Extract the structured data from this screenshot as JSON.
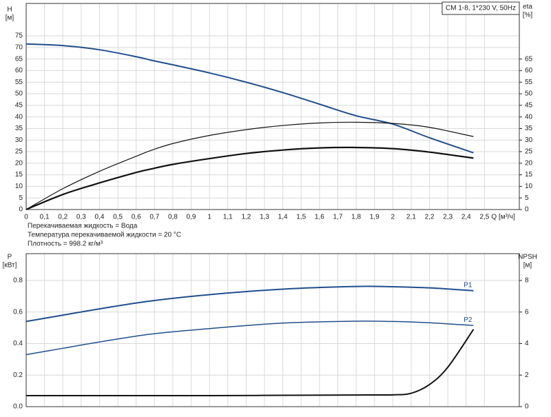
{
  "chart_data": [
    {
      "type": "line",
      "title": "CM 1-8, 1*230 V, 50Hz",
      "ylabel": "H",
      "yunit": "[м]",
      "y2label": "eta",
      "y2unit": "[%]",
      "xlabel": "Q [м³/ч]",
      "notes": [
        "Перекачиваемая жидкость = Вода",
        "Температура перекачиваемой жидкости = 20 °C",
        "Плотность = 998.2 кг/м³"
      ],
      "x": [
        0,
        0.2,
        0.4,
        0.6,
        0.68,
        0.8,
        1.0,
        1.2,
        1.4,
        1.6,
        1.8,
        2.0,
        2.2,
        2.44
      ],
      "series": [
        {
          "color": "#1f4e8c",
          "line_width": 2,
          "values": [
            71.5,
            70.8,
            69,
            66,
            64.5,
            62.5,
            59,
            55,
            50.5,
            45.5,
            40.5,
            36.9,
            31,
            24.5
          ]
        },
        {
          "color": "#111111",
          "line_width": 1.2,
          "axis": "y2",
          "values": [
            0,
            9,
            16.5,
            23,
            25.5,
            28.5,
            32,
            34.5,
            36.3,
            37.4,
            37.7,
            37.2,
            35.5,
            31.5
          ]
        },
        {
          "color": "#111111",
          "line_width": 2.2,
          "axis": "y2",
          "values": [
            0,
            6.5,
            11.5,
            16,
            17.5,
            19.5,
            22,
            24.2,
            25.7,
            26.6,
            26.8,
            26.3,
            24.8,
            22.2
          ]
        }
      ],
      "xlim": [
        0,
        2.69
      ],
      "xticks": [
        0,
        {
          "value": 0.1,
          "label": "0,1"
        },
        {
          "value": 0.2,
          "label": "0,2"
        },
        {
          "value": 0.3,
          "label": "0,3"
        },
        {
          "value": 0.4,
          "label": "0,4"
        },
        {
          "value": 0.5,
          "label": "0,5"
        },
        {
          "value": 0.6,
          "label": "0,6"
        },
        {
          "value": 0.7,
          "label": "0,7"
        },
        {
          "value": 0.8,
          "label": "0,8"
        },
        {
          "value": 0.9,
          "label": "0,9"
        },
        1,
        {
          "value": 1.1,
          "label": "1,1"
        },
        {
          "value": 1.2,
          "label": "1,2"
        },
        {
          "value": 1.3,
          "label": "1,3"
        },
        {
          "value": 1.4,
          "label": "1,4"
        },
        {
          "value": 1.5,
          "label": "1,5"
        },
        {
          "value": 1.6,
          "label": "1,6"
        },
        {
          "value": 1.7,
          "label": "1,7"
        },
        {
          "value": 1.8,
          "label": "1,8"
        },
        {
          "value": 1.9,
          "label": "1,9"
        },
        2,
        {
          "value": 2.1,
          "label": "2,1"
        },
        {
          "value": 2.2,
          "label": "2,2"
        },
        {
          "value": 2.3,
          "label": "2,3"
        },
        {
          "value": 2.4,
          "label": "2,4"
        },
        {
          "value": 2.5,
          "label": "2,5"
        }
      ],
      "ylim": [
        0,
        89
      ],
      "yticks": [
        0,
        5,
        10,
        15,
        20,
        25,
        30,
        35,
        40,
        45,
        50,
        55,
        60,
        65,
        70,
        75
      ],
      "y2lim": [
        0,
        89
      ],
      "y2ticks": [
        0,
        5,
        10,
        15,
        20,
        25,
        30,
        35,
        40,
        45,
        50,
        55,
        60,
        65
      ],
      "grid": true
    },
    {
      "type": "line",
      "ylabel": "P",
      "yunit": "[кВт]",
      "y2label": "NPSH",
      "y2unit": "[м]",
      "x": [
        0,
        0.2,
        0.4,
        0.68,
        1.0,
        1.4,
        1.8,
        2.0,
        2.1,
        2.2,
        2.3,
        2.44
      ],
      "series": [
        {
          "name": "P1",
          "color": "#1f4e8c",
          "line_width": 2,
          "values": [
            0.54,
            0.58,
            0.62,
            0.67,
            0.71,
            0.745,
            0.762,
            0.76,
            0.757,
            0.753,
            0.746,
            0.735
          ]
        },
        {
          "name": "P2",
          "color": "#1f4e8c",
          "line_width": 1.5,
          "values": [
            0.33,
            0.37,
            0.41,
            0.46,
            0.495,
            0.53,
            0.542,
            0.54,
            0.537,
            0.532,
            0.525,
            0.515
          ]
        },
        {
          "color": "#111111",
          "line_width": 2,
          "axis": "y2",
          "values": [
            0.7,
            0.7,
            0.7,
            0.7,
            0.7,
            0.72,
            0.74,
            0.75,
            0.85,
            1.4,
            2.5,
            4.9
          ]
        }
      ],
      "xlim": [
        0,
        2.69
      ],
      "xticks": [
        0,
        0.1,
        0.2,
        0.3,
        0.4,
        0.5,
        0.6,
        0.7,
        0.8,
        0.9,
        1,
        1.1,
        1.2,
        1.3,
        1.4,
        1.5,
        1.6,
        1.7,
        1.8,
        1.9,
        2,
        2.1,
        2.2,
        2.3,
        2.4,
        2.5
      ],
      "ylim": [
        0,
        0.97
      ],
      "yticks": [
        {
          "value": 0,
          "label": "0.0"
        },
        0.2,
        0.4,
        0.6,
        0.8
      ],
      "y2lim": [
        0,
        9.7
      ],
      "y2ticks": [
        0,
        2,
        4,
        6,
        8
      ],
      "grid": true
    }
  ]
}
